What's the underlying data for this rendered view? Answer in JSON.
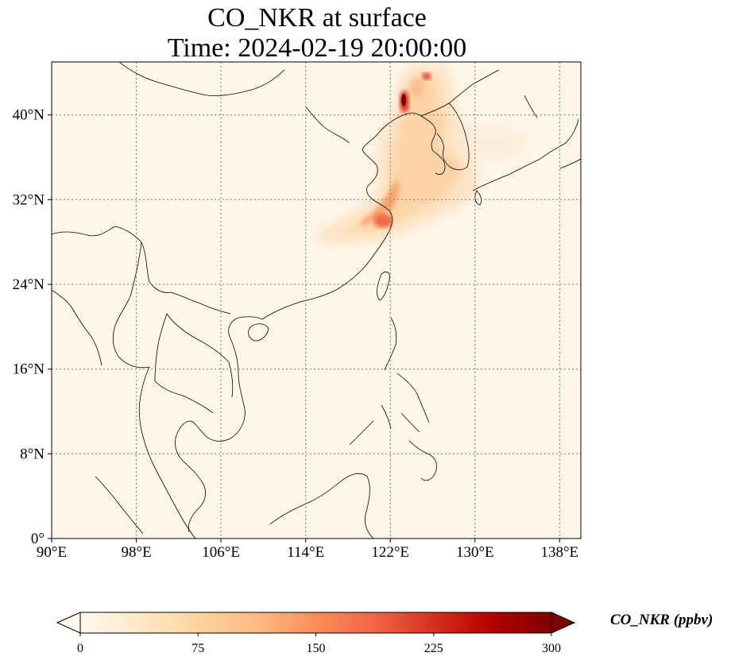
{
  "title": {
    "line1": "CO_NKR at surface",
    "line2": "Time: 2024-02-19 20:00:00"
  },
  "map": {
    "type": "filled-contour-map",
    "variable": "CO_NKR",
    "level": "surface",
    "x_ticks": [
      "90°E",
      "98°E",
      "106°E",
      "114°E",
      "122°E",
      "130°E",
      "138°E"
    ],
    "y_ticks": [
      "0°",
      "8°N",
      "16°N",
      "24°N",
      "32°N",
      "40°N"
    ],
    "lon_range": [
      90,
      140
    ],
    "lat_range": [
      0,
      45
    ],
    "grid": "dotted",
    "colormap": "OrRd",
    "max_concentration_location": "Northeast China near 40°N 122°E"
  },
  "colorbar": {
    "ticks": [
      "0",
      "75",
      "150",
      "225",
      "300"
    ],
    "label": "CO_NKR (ppbv)",
    "extend": "both",
    "colors": [
      "#fff7ec",
      "#fee8c8",
      "#fdd49e",
      "#fdbb84",
      "#fc8d59",
      "#ef6548",
      "#d7301f",
      "#b30000",
      "#7f0000"
    ]
  }
}
